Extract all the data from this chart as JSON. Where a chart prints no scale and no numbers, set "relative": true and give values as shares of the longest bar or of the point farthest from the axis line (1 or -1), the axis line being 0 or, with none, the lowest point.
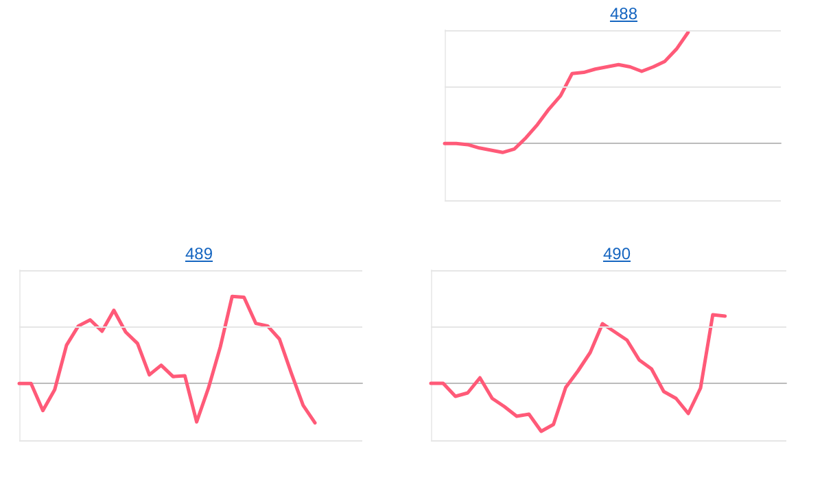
{
  "chart_data": [
    {
      "type": "line",
      "title": "488",
      "relative": true,
      "categories": [
        null,
        null,
        null,
        null,
        null,
        null,
        null,
        null,
        null,
        null,
        null,
        null,
        null,
        null,
        null,
        null,
        null,
        null,
        null,
        null,
        null,
        null,
        null,
        null,
        null,
        null,
        null,
        null,
        null,
        null
      ],
      "series": [
        {
          "color": "#ff5a78",
          "values": [
            0,
            0,
            -0.01,
            -0.04,
            -0.06,
            -0.08,
            -0.05,
            0.05,
            0.17,
            0.31,
            0.43,
            0.63,
            0.64,
            0.67,
            0.69,
            0.71,
            0.69,
            0.65,
            0.69,
            0.74,
            0.85,
            1,
            null,
            null,
            null,
            null,
            null,
            null,
            null,
            null
          ]
        }
      ],
      "ref_lines": [
        {
          "axis": "y",
          "value": 1.02,
          "color": "#e6e6e6"
        },
        {
          "axis": "y",
          "value": 0.51,
          "color": "#e6e6e6"
        },
        {
          "axis": "y",
          "value": -0.51,
          "color": "#e6e6e6"
        }
      ]
    },
    {
      "type": "line",
      "title": "489",
      "relative": true,
      "categories": [
        null,
        null,
        null,
        null,
        null,
        null,
        null,
        null,
        null,
        null,
        null,
        null,
        null,
        null,
        null,
        null,
        null,
        null,
        null,
        null,
        null,
        null,
        null,
        null,
        null,
        null,
        null,
        null,
        null,
        null
      ],
      "series": [
        {
          "color": "#ff5a78",
          "values": [
            0,
            0,
            -0.31,
            -0.07,
            0.44,
            0.66,
            0.73,
            0.6,
            0.84,
            0.59,
            0.46,
            0.1,
            0.21,
            0.08,
            0.09,
            -0.44,
            -0.05,
            0.42,
            1,
            0.99,
            0.69,
            0.66,
            0.51,
            0.12,
            -0.25,
            -0.45,
            null,
            null,
            null,
            null
          ]
        }
      ],
      "ref_lines": [
        {
          "axis": "y",
          "value": 1.3,
          "color": "#e6e6e6"
        },
        {
          "axis": "y",
          "value": 0.65,
          "color": "#e6e6e6"
        },
        {
          "axis": "y",
          "value": -0.65,
          "color": "#e6e6e6"
        }
      ]
    },
    {
      "type": "line",
      "title": "490",
      "relative": true,
      "categories": [
        null,
        null,
        null,
        null,
        null,
        null,
        null,
        null,
        null,
        null,
        null,
        null,
        null,
        null,
        null,
        null,
        null,
        null,
        null,
        null,
        null,
        null,
        null,
        null,
        null,
        null,
        null,
        null,
        null,
        null
      ],
      "series": [
        {
          "color": "#ff5a78",
          "values": [
            0,
            0,
            -0.19,
            -0.14,
            0.08,
            -0.22,
            -0.34,
            -0.48,
            -0.45,
            -0.7,
            -0.6,
            -0.06,
            0.18,
            0.45,
            0.87,
            0.75,
            0.63,
            0.34,
            0.21,
            -0.12,
            -0.22,
            -0.44,
            -0.07,
            1,
            0.98,
            null,
            null,
            null,
            null,
            null
          ]
        }
      ],
      "ref_lines": [
        {
          "axis": "y",
          "value": 1.65,
          "color": "#e6e6e6"
        },
        {
          "axis": "y",
          "value": 0.83,
          "color": "#e6e6e6"
        },
        {
          "axis": "y",
          "value": -0.83,
          "color": "#e6e6e6"
        }
      ]
    }
  ]
}
